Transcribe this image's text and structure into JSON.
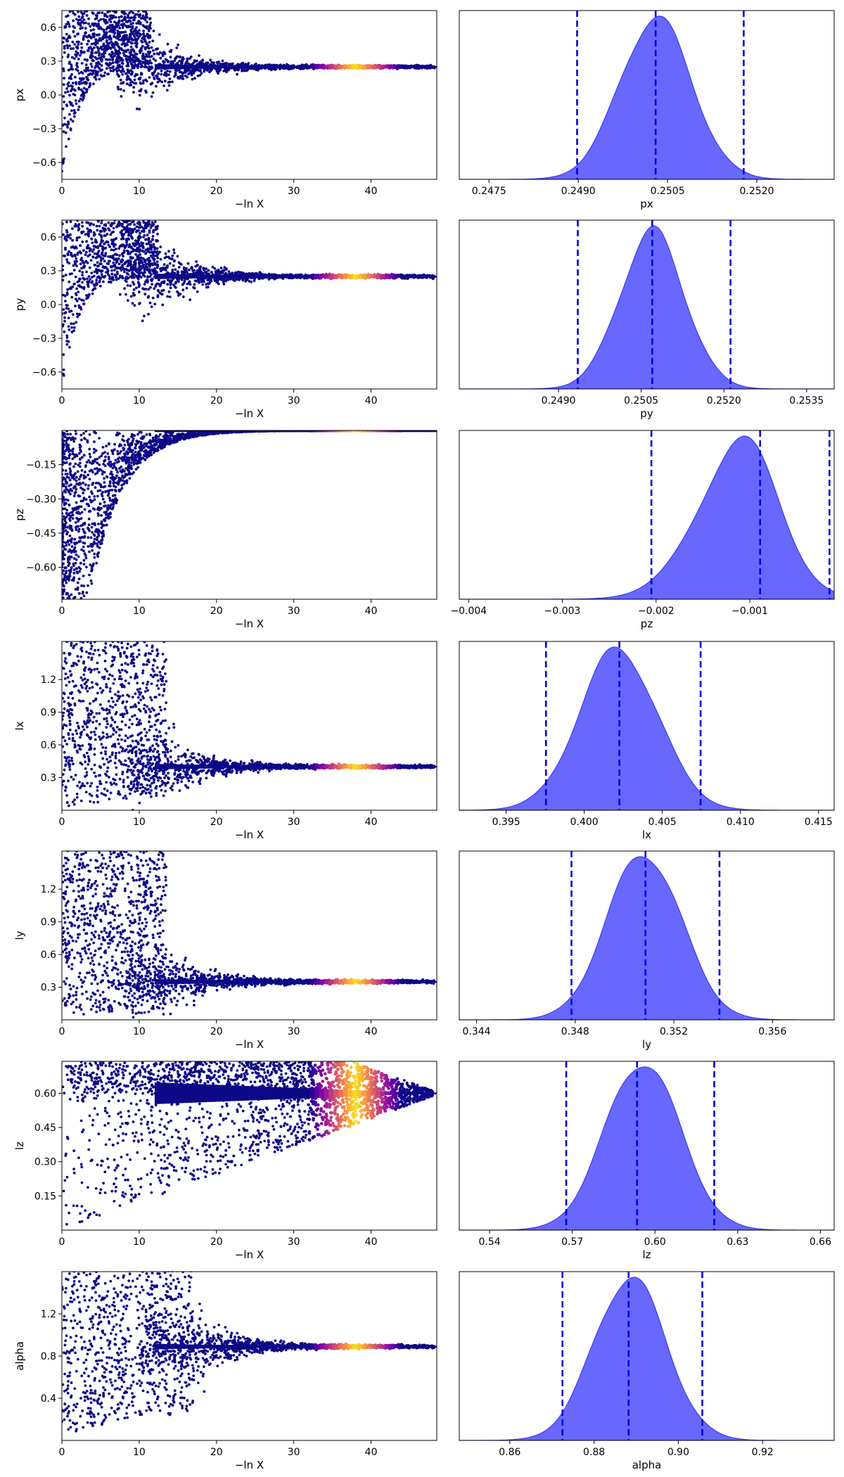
{
  "chart_data": [
    {
      "type": "scatter",
      "panel": "trace",
      "param": "px",
      "xlabel": "−ln X",
      "ylabel": "px",
      "xlim": [
        0,
        48.5
      ],
      "ylim": [
        -0.75,
        0.75
      ],
      "xticks": [
        0,
        10,
        20,
        30,
        40
      ],
      "yticks": [
        -0.6,
        -0.3,
        0.0,
        0.3,
        0.6
      ],
      "ytick_labels": [
        "−0.6",
        "−0.3",
        "0.0",
        "0.3",
        "0.6"
      ],
      "converged_value": 0.25,
      "scatter_cutoff": 11.5,
      "cmap": "plasma"
    },
    {
      "type": "area",
      "panel": "marginal",
      "param": "px",
      "xlabel": "px",
      "xlim": [
        0.247,
        0.2533
      ],
      "xticks": [
        0.2475,
        0.249,
        0.2505,
        0.252
      ],
      "xtick_labels": [
        "0.2475",
        "0.2490",
        "0.2505",
        "0.2520"
      ],
      "mean": 0.2503,
      "sigma": 0.0006,
      "skew": 0,
      "quantiles": [
        0.24898,
        0.2503,
        0.25178
      ]
    },
    {
      "type": "scatter",
      "panel": "trace",
      "param": "py",
      "xlabel": "−ln X",
      "ylabel": "py",
      "xlim": [
        0,
        48.5
      ],
      "ylim": [
        -0.75,
        0.75
      ],
      "xticks": [
        0,
        10,
        20,
        30,
        40
      ],
      "yticks": [
        -0.6,
        -0.3,
        0.0,
        0.3,
        0.6
      ],
      "ytick_labels": [
        "−0.6",
        "−0.3",
        "0.0",
        "0.3",
        "0.6"
      ],
      "converged_value": 0.25,
      "scatter_cutoff": 12.5,
      "cmap": "plasma"
    },
    {
      "type": "area",
      "panel": "marginal",
      "param": "py",
      "xlabel": "py",
      "xlim": [
        0.2472,
        0.254
      ],
      "xticks": [
        0.249,
        0.2505,
        0.252,
        0.2535
      ],
      "xtick_labels": [
        "0.2490",
        "0.2505",
        "0.2520",
        "0.2535"
      ],
      "mean": 0.2507,
      "sigma": 0.00058,
      "skew": 0,
      "quantiles": [
        0.24935,
        0.2507,
        0.25212
      ]
    },
    {
      "type": "scatter",
      "panel": "trace",
      "param": "pz",
      "xlabel": "−ln X",
      "ylabel": "pz",
      "xlim": [
        0,
        48.5
      ],
      "ylim": [
        -0.74,
        0.0
      ],
      "xticks": [
        0,
        10,
        20,
        30,
        40
      ],
      "yticks": [
        -0.15,
        -0.3,
        -0.45,
        -0.6
      ],
      "ytick_labels": [
        "−0.15",
        "−0.30",
        "−0.45",
        "−0.60"
      ],
      "converged_value": -0.001,
      "cmap": "plasma"
    },
    {
      "type": "area",
      "panel": "marginal",
      "param": "pz",
      "xlabel": "pz",
      "xlim": [
        -0.0041,
        -0.0001
      ],
      "xticks": [
        -0.004,
        -0.003,
        -0.002,
        -0.001
      ],
      "xtick_labels": [
        "−0.004",
        "−0.003",
        "−0.002",
        "−0.001"
      ],
      "mean": -0.0008,
      "sigma": 0.00055,
      "skew": -1.2,
      "quantiles": [
        -0.00205,
        -0.00089,
        -0.00015
      ]
    },
    {
      "type": "scatter",
      "panel": "trace",
      "param": "lx",
      "xlabel": "−ln X",
      "ylabel": "lx",
      "xlim": [
        0,
        48.5
      ],
      "ylim": [
        0.0,
        1.55
      ],
      "xticks": [
        0,
        10,
        20,
        30,
        40
      ],
      "yticks": [
        0.3,
        0.6,
        0.9,
        1.2
      ],
      "ytick_labels": [
        "0.3",
        "0.6",
        "0.9",
        "1.2"
      ],
      "converged_value": 0.4,
      "scatter_cutoff": 13.5,
      "cmap": "plasma"
    },
    {
      "type": "area",
      "panel": "marginal",
      "param": "lx",
      "xlabel": "lx",
      "xlim": [
        0.392,
        0.416
      ],
      "xticks": [
        0.395,
        0.4,
        0.405,
        0.41,
        0.415
      ],
      "xtick_labels": [
        "0.395",
        "0.400",
        "0.405",
        "0.410",
        "0.415"
      ],
      "mean": 0.4022,
      "sigma": 0.0025,
      "skew": 0,
      "quantiles": [
        0.39755,
        0.40225,
        0.40745
      ]
    },
    {
      "type": "scatter",
      "panel": "trace",
      "param": "ly",
      "xlabel": "−ln X",
      "ylabel": "ly",
      "xlim": [
        0,
        48.5
      ],
      "ylim": [
        0.0,
        1.55
      ],
      "xticks": [
        0,
        10,
        20,
        30,
        40
      ],
      "yticks": [
        0.3,
        0.6,
        0.9,
        1.2
      ],
      "ytick_labels": [
        "0.3",
        "0.6",
        "0.9",
        "1.2"
      ],
      "converged_value": 0.35,
      "scatter_cutoff": 13.5,
      "cmap": "plasma"
    },
    {
      "type": "area",
      "panel": "marginal",
      "param": "ly",
      "xlabel": "ly",
      "xlim": [
        0.3433,
        0.3585
      ],
      "xticks": [
        0.344,
        0.348,
        0.352,
        0.356
      ],
      "xtick_labels": [
        "0.344",
        "0.348",
        "0.352",
        "0.356"
      ],
      "mean": 0.3508,
      "sigma": 0.0015,
      "skew": 0,
      "quantiles": [
        0.34785,
        0.35085,
        0.35385
      ]
    },
    {
      "type": "scatter",
      "panel": "trace",
      "param": "lz",
      "xlabel": "−ln X",
      "ylabel": "lz",
      "xlim": [
        0,
        48.5
      ],
      "ylim": [
        0.0,
        0.74
      ],
      "xticks": [
        0,
        10,
        20,
        30,
        40
      ],
      "yticks": [
        0.15,
        0.3,
        0.45,
        0.6
      ],
      "ytick_labels": [
        "0.15",
        "0.30",
        "0.45",
        "0.60"
      ],
      "converged_value": 0.6,
      "cmap": "plasma"
    },
    {
      "type": "area",
      "panel": "marginal",
      "param": "lz",
      "xlabel": "lz",
      "xlim": [
        0.529,
        0.665
      ],
      "xticks": [
        0.54,
        0.57,
        0.6,
        0.63,
        0.66
      ],
      "xtick_labels": [
        "0.54",
        "0.57",
        "0.60",
        "0.63",
        "0.66"
      ],
      "mean": 0.5955,
      "sigma": 0.0135,
      "skew": 0,
      "quantiles": [
        0.5678,
        0.5935,
        0.6215
      ]
    },
    {
      "type": "scatter",
      "panel": "trace",
      "param": "alpha",
      "xlabel": "−ln X",
      "ylabel": "alpha",
      "xlim": [
        0,
        48.5
      ],
      "ylim": [
        0.0,
        1.6
      ],
      "xticks": [
        0,
        10,
        20,
        30,
        40
      ],
      "yticks": [
        0.4,
        0.8,
        1.2
      ],
      "ytick_labels": [
        "0.4",
        "0.8",
        "1.2"
      ],
      "converged_value": 0.89,
      "scatter_cutoff": 17,
      "cmap": "plasma"
    },
    {
      "type": "area",
      "panel": "marginal",
      "param": "alpha",
      "xlabel": "alpha",
      "xlim": [
        0.848,
        0.937
      ],
      "xticks": [
        0.86,
        0.88,
        0.9,
        0.92
      ],
      "xtick_labels": [
        "0.86",
        "0.88",
        "0.90",
        "0.92"
      ],
      "mean": 0.8885,
      "sigma": 0.0085,
      "skew": 0,
      "quantiles": [
        0.8725,
        0.8882,
        0.9057
      ]
    }
  ]
}
